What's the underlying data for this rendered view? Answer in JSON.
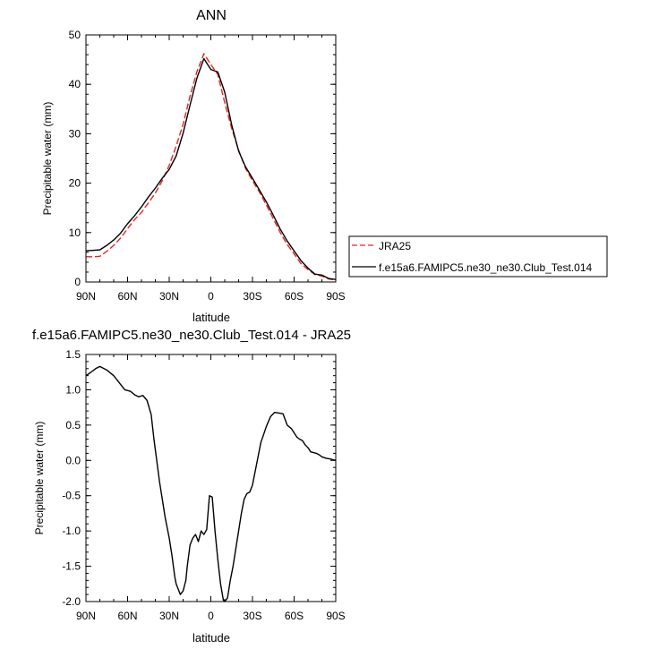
{
  "chart_data": [
    {
      "type": "line",
      "title": "ANN",
      "xlabel": "latitude",
      "ylabel": "Precipitable water (mm)",
      "xlim": [
        90,
        -90
      ],
      "ylim": [
        0,
        50
      ],
      "x_ticks": [
        90,
        60,
        30,
        0,
        -30,
        -60,
        -90
      ],
      "x_tick_labels": [
        "90N",
        "60N",
        "30N",
        "0",
        "30S",
        "60S",
        "90S"
      ],
      "y_ticks": [
        0,
        10,
        20,
        30,
        40,
        50
      ],
      "y_tick_labels": [
        "0",
        "10",
        "20",
        "30",
        "40",
        "50"
      ],
      "grid": false,
      "legend": "right",
      "series": [
        {
          "name": "JRA25",
          "color": "#e8231f",
          "dash": "dashed",
          "x": [
            90,
            85,
            80,
            75,
            70,
            65,
            60,
            55,
            50,
            45,
            40,
            35,
            30,
            25,
            20,
            15,
            10,
            5,
            0,
            -5,
            -10,
            -15,
            -20,
            -25,
            -30,
            -35,
            -40,
            -45,
            -50,
            -55,
            -60,
            -65,
            -70,
            -75,
            -80,
            -85,
            -90
          ],
          "values": [
            5.1,
            5.1,
            5.2,
            6.2,
            7.4,
            8.9,
            10.8,
            12.6,
            14.1,
            16.0,
            18.0,
            20.5,
            23.6,
            27.5,
            31.9,
            37.6,
            42.6,
            46.2,
            44.0,
            42.0,
            36.3,
            31.1,
            26.7,
            23.0,
            20.5,
            18.2,
            15.6,
            12.8,
            10.0,
            7.6,
            5.7,
            3.7,
            2.5,
            1.5,
            1.2,
            0.6,
            0.4
          ]
        },
        {
          "name": "f.e15a6.FAMIPC5.ne30_ne30.Club_Test.014",
          "color": "#000000",
          "dash": "solid",
          "x": [
            90,
            85,
            80,
            75,
            70,
            65,
            60,
            55,
            50,
            45,
            40,
            35,
            30,
            25,
            20,
            15,
            10,
            5,
            0,
            -5,
            -10,
            -15,
            -20,
            -25,
            -30,
            -35,
            -40,
            -45,
            -50,
            -55,
            -60,
            -65,
            -70,
            -75,
            -80,
            -85,
            -90
          ],
          "values": [
            6.3,
            6.4,
            6.5,
            7.4,
            8.5,
            9.9,
            11.8,
            13.4,
            15.2,
            17.2,
            19.0,
            21.0,
            22.8,
            25.5,
            30.1,
            35.8,
            41.3,
            45.2,
            43.0,
            42.5,
            38.4,
            31.8,
            26.5,
            23.3,
            21.0,
            18.6,
            16.2,
            13.5,
            10.7,
            8.3,
            6.3,
            4.3,
            2.8,
            1.6,
            1.4,
            0.7,
            0.5
          ]
        }
      ]
    },
    {
      "type": "line",
      "title": "f.e15a6.FAMIPC5.ne30_ne30.Club_Test.014 - JRA25",
      "xlabel": "latitude",
      "ylabel": "Precipitable water (mm)",
      "xlim": [
        90,
        -90
      ],
      "ylim": [
        -2.0,
        1.5
      ],
      "x_ticks": [
        90,
        60,
        30,
        0,
        -30,
        -60,
        -90
      ],
      "x_tick_labels": [
        "90N",
        "60N",
        "30N",
        "0",
        "30S",
        "60S",
        "90S"
      ],
      "y_ticks": [
        -2.0,
        -1.5,
        -1.0,
        -0.5,
        0.0,
        0.5,
        1.0,
        1.5
      ],
      "y_tick_labels": [
        "-2.0",
        "-1.5",
        "-1.0",
        "-0.5",
        "0.0",
        "0.5",
        "1.0",
        "1.5"
      ],
      "grid": false,
      "series": [
        {
          "color": "#000000",
          "dash": "solid",
          "x": [
            90,
            87,
            83,
            80,
            75,
            70,
            66,
            62,
            58,
            55,
            52,
            49,
            46,
            43,
            41,
            39,
            37,
            35,
            33,
            30,
            28,
            26,
            25,
            22,
            20,
            18,
            17,
            15,
            13,
            11,
            9,
            7,
            5,
            3,
            1,
            -1,
            -3,
            -5,
            -7,
            -9,
            -10,
            -12,
            -14,
            -16,
            -18,
            -20,
            -22,
            -24,
            -26,
            -28,
            -30,
            -33,
            -36,
            -40,
            -43,
            -46,
            -49,
            -52,
            -55,
            -58,
            -60,
            -62,
            -64,
            -66,
            -68,
            -70,
            -72,
            -74,
            -76,
            -78,
            -80,
            -83,
            -86,
            -88,
            -90
          ],
          "values": [
            1.2,
            1.24,
            1.3,
            1.33,
            1.28,
            1.2,
            1.1,
            1.0,
            0.98,
            0.93,
            0.9,
            0.92,
            0.85,
            0.65,
            0.3,
            0.0,
            -0.3,
            -0.55,
            -0.8,
            -1.1,
            -1.35,
            -1.65,
            -1.75,
            -1.9,
            -1.85,
            -1.7,
            -1.5,
            -1.2,
            -1.1,
            -1.05,
            -1.15,
            -1.0,
            -1.05,
            -0.98,
            -0.5,
            -0.52,
            -1.0,
            -1.4,
            -1.75,
            -1.98,
            -2.0,
            -1.95,
            -1.7,
            -1.5,
            -1.25,
            -1.0,
            -0.75,
            -0.55,
            -0.47,
            -0.45,
            -0.35,
            -0.05,
            0.25,
            0.48,
            0.62,
            0.68,
            0.67,
            0.66,
            0.5,
            0.45,
            0.39,
            0.33,
            0.3,
            0.28,
            0.22,
            0.18,
            0.12,
            0.11,
            0.1,
            0.08,
            0.05,
            0.03,
            0.02,
            0.01,
            0.0
          ]
        }
      ]
    }
  ]
}
